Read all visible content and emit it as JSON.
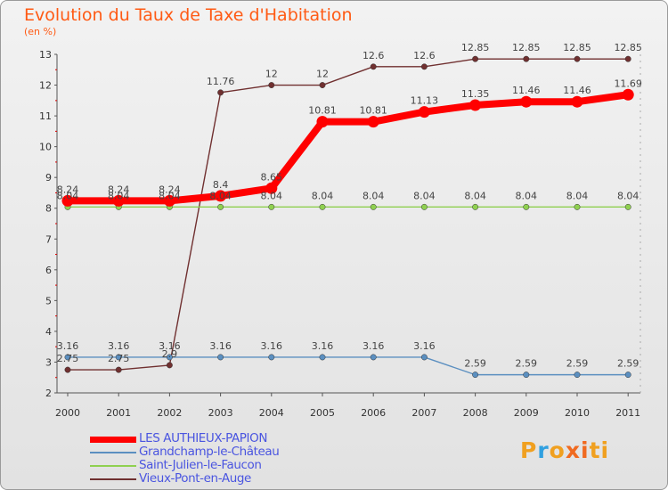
{
  "title": "Evolution du Taux de Taxe d'Habitation",
  "subtitle": "(en %)",
  "logo": {
    "text": "Proxiti",
    "colors": [
      "#f0a020",
      "#30a0e0",
      "#f06a20"
    ]
  },
  "chart_data": {
    "type": "line",
    "x": [
      "2000",
      "2001",
      "2002",
      "2003",
      "2004",
      "2005",
      "2006",
      "2007",
      "2008",
      "2009",
      "2010",
      "2011"
    ],
    "ylim": [
      2,
      13
    ],
    "yticks": [
      "2",
      "3",
      "4",
      "5",
      "6",
      "7",
      "8",
      "9",
      "10",
      "11",
      "12",
      "13"
    ],
    "grid": false,
    "legend_position": "bottom-left",
    "series": [
      {
        "name": "LES AUTHIEUX-PAPION",
        "color": "#ff0000",
        "values": [
          8.24,
          8.24,
          8.24,
          8.4,
          8.65,
          10.81,
          10.81,
          11.13,
          11.35,
          11.46,
          11.46,
          11.69
        ],
        "labels": [
          "8.24",
          "8.24",
          "8.24",
          "8.4",
          "8.65",
          "10.81",
          "10.81",
          "11.13",
          "11.35",
          "11.46",
          "11.46",
          "11.69"
        ]
      },
      {
        "name": "Grandchamp-le-Château",
        "color": "#5b8fc0",
        "values": [
          3.16,
          3.16,
          3.16,
          3.16,
          3.16,
          3.16,
          3.16,
          3.16,
          2.59,
          2.59,
          2.59,
          2.59
        ],
        "labels": [
          "3.16",
          "3.16",
          "3.16",
          "3.16",
          "3.16",
          "3.16",
          "3.16",
          "3.16",
          "2.59",
          "2.59",
          "2.59",
          "2.59"
        ]
      },
      {
        "name": "Saint-Julien-le-Faucon",
        "color": "#8fd050",
        "values": [
          8.04,
          8.04,
          8.04,
          8.04,
          8.04,
          8.04,
          8.04,
          8.04,
          8.04,
          8.04,
          8.04,
          8.04
        ],
        "labels": [
          "8.04",
          "8.04",
          "8.04",
          "8.04",
          "8.04",
          "8.04",
          "8.04",
          "8.04",
          "8.04",
          "8.04",
          "8.04",
          "8.04"
        ]
      },
      {
        "name": "Vieux-Pont-en-Auge",
        "color": "#703030",
        "values": [
          2.75,
          2.75,
          2.9,
          11.76,
          12,
          12,
          12.6,
          12.6,
          12.85,
          12.85,
          12.85,
          12.85
        ],
        "labels": [
          "2.75",
          "2.75",
          "2.9",
          "11.76",
          "12",
          "12",
          "12.6",
          "12.6",
          "12.85",
          "12.85",
          "12.85",
          "12.85"
        ]
      }
    ]
  }
}
